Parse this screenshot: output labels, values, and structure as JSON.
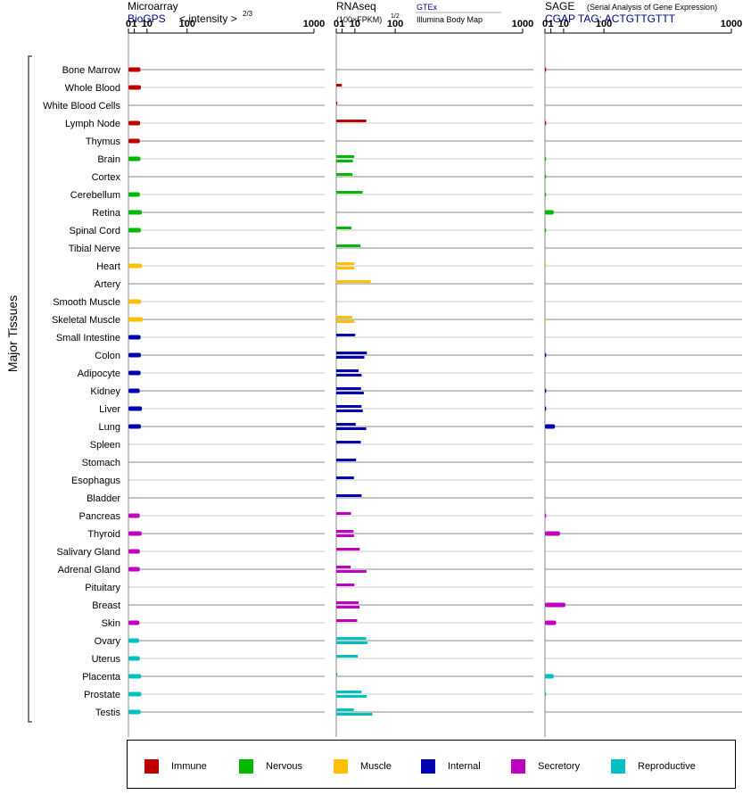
{
  "ylabel": "Major Tissues",
  "panels": {
    "microarray": {
      "title": "Microarray",
      "subtitle": "BioGPS",
      "unit": "< intensity >",
      "unit_exp": "2/3"
    },
    "rnaseq": {
      "title": "RNAseq",
      "unit": "(100×FPKM)",
      "unit_exp": "1/2",
      "sources": [
        "GTEx",
        "Illumina Body Map"
      ]
    },
    "sage": {
      "title": "SAGE",
      "subtitle": "(Serial Analysis of Gene Expression)",
      "tag": "CGAP TAG: ACTGTTGTTT"
    }
  },
  "colors": {
    "Immune": "#c00000",
    "Nervous": "#00b800",
    "Muscle": "#ffc000",
    "Internal": "#0000b0",
    "Secretory": "#c000c0",
    "Reproductive": "#00c0c0"
  },
  "legend": [
    "Immune",
    "Nervous",
    "Muscle",
    "Internal",
    "Secretory",
    "Reproductive"
  ],
  "chart_data": {
    "type": "bar",
    "orientation": "horizontal",
    "x_scale": "power (root)",
    "xlim": [
      0,
      1000
    ],
    "ticks": [
      "0",
      "1",
      "10",
      "100",
      "1000"
    ],
    "tick_values": [
      0,
      1,
      10,
      100,
      1000
    ],
    "categories": [
      "Bone Marrow",
      "Whole Blood",
      "White Blood Cells",
      "Lymph Node",
      "Thymus",
      "Brain",
      "Cortex",
      "Cerebellum",
      "Retina",
      "Spinal Cord",
      "Tibial Nerve",
      "Heart",
      "Artery",
      "Smooth Muscle",
      "Skeletal Muscle",
      "Small Intestine",
      "Colon",
      "Adipocyte",
      "Kidney",
      "Liver",
      "Lung",
      "Spleen",
      "Stomach",
      "Esophagus",
      "Bladder",
      "Pancreas",
      "Thyroid",
      "Salivary Gland",
      "Adrenal Gland",
      "Pituitary",
      "Breast",
      "Skin",
      "Ovary",
      "Uterus",
      "Placenta",
      "Prostate",
      "Testis"
    ],
    "groups": [
      "Immune",
      "Immune",
      "Immune",
      "Immune",
      "Immune",
      "Nervous",
      "Nervous",
      "Nervous",
      "Nervous",
      "Nervous",
      "Nervous",
      "Muscle",
      "Muscle",
      "Muscle",
      "Muscle",
      "Internal",
      "Internal",
      "Internal",
      "Internal",
      "Internal",
      "Internal",
      "Internal",
      "Internal",
      "Internal",
      "Internal",
      "Secretory",
      "Secretory",
      "Secretory",
      "Secretory",
      "Secretory",
      "Secretory",
      "Secretory",
      "Reproductive",
      "Reproductive",
      "Reproductive",
      "Reproductive",
      "Reproductive"
    ],
    "series": [
      {
        "name": "Microarray",
        "values": [
          4.2,
          4.5,
          null,
          4.0,
          3.8,
          4.2,
          null,
          3.8,
          5.2,
          4.5,
          null,
          5.2,
          null,
          4.6,
          6.0,
          4.3,
          4.5,
          4.3,
          3.7,
          5.3,
          4.5,
          null,
          null,
          null,
          null,
          3.7,
          5.1,
          3.8,
          3.8,
          null,
          null,
          3.5,
          3.3,
          3.8,
          4.6,
          4.8,
          4.3
        ]
      },
      {
        "name": "RNAseq GTEx",
        "values": [
          null,
          0.9,
          0.012,
          26,
          null,
          9.3,
          7.6,
          20,
          null,
          6.7,
          17,
          9.4,
          34,
          null,
          7.3,
          10.3,
          27,
          14.3,
          17.6,
          18.4,
          10.8,
          17.3,
          11.3,
          9.0,
          18.4,
          6.3,
          8.6,
          16.0,
          6.0,
          9.4,
          14.5,
          12.6,
          25.8,
          13.3,
          0.0,
          18.4,
          9.0
        ]
      },
      {
        "name": "RNAseq Illumina Body Map",
        "values": [
          null,
          null,
          null,
          null,
          null,
          8.0,
          null,
          null,
          null,
          null,
          null,
          9.4,
          null,
          null,
          9.4,
          null,
          22.7,
          18.4,
          21.8,
          20.3,
          25.8,
          null,
          null,
          null,
          null,
          null,
          9.0,
          null,
          26.2,
          null,
          15.6,
          null,
          28.1,
          null,
          null,
          27.0,
          37.6
        ]
      },
      {
        "name": "SAGE",
        "values": [
          0.04,
          null,
          null,
          0.04,
          null,
          0.02,
          0.02,
          0.02,
          2.2,
          0.02,
          null,
          0.01,
          null,
          null,
          0.01,
          null,
          0.04,
          null,
          0.04,
          0.04,
          2.9,
          null,
          null,
          null,
          null,
          0.04,
          6.5,
          null,
          null,
          null,
          12.0,
          3.6,
          null,
          null,
          2.2,
          0.02,
          null
        ]
      }
    ]
  }
}
